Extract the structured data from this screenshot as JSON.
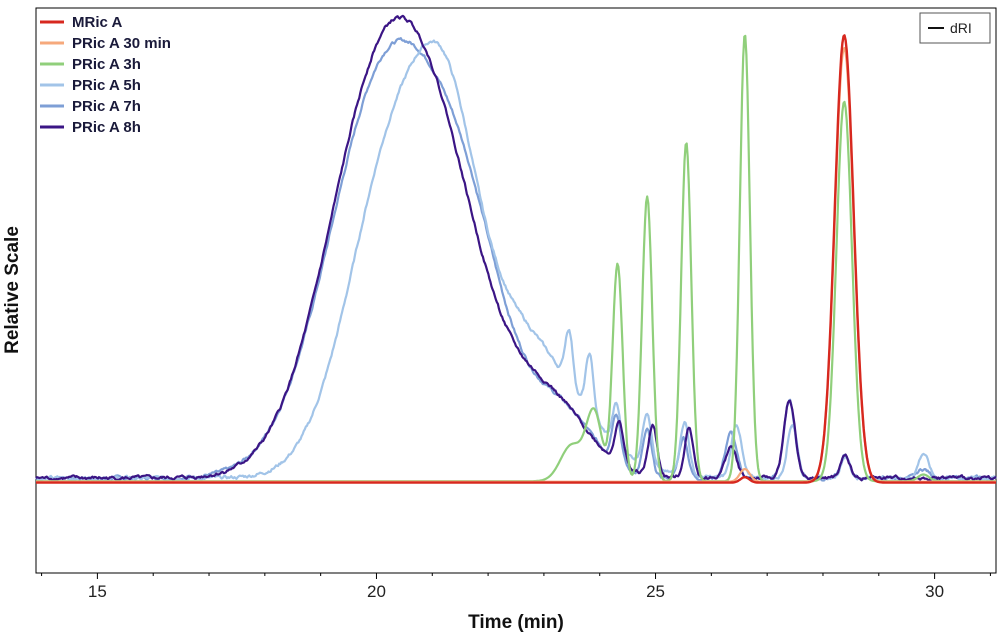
{
  "chart_data": {
    "type": "line",
    "title": "",
    "xlabel": "Time (min)",
    "ylabel": "Relative Scale",
    "xlim": [
      13.9,
      31.1
    ],
    "ylim": [
      -0.2,
      1.05
    ],
    "x_ticks": [
      15,
      20,
      25,
      30
    ],
    "x_tick_labels": [
      "15",
      "20",
      "25",
      "30"
    ],
    "grid": false,
    "legend_position": "top-left",
    "detector_legend": {
      "label": "dRI",
      "position": "top-right"
    },
    "series": [
      {
        "name": "MRic A",
        "color": "#d7281f",
        "baseline": 0,
        "peaks": [
          [
            26.6,
            0.012,
            0.08
          ],
          [
            28.38,
            0.99,
            0.17
          ]
        ]
      },
      {
        "name": "PRic A 30 min",
        "color": "#f6a97c",
        "baseline": 0.002,
        "peaks": [
          [
            26.6,
            0.028,
            0.09
          ],
          [
            28.38,
            0.96,
            0.17
          ]
        ]
      },
      {
        "name": "PRic A 3h",
        "color": "#90cf7b",
        "baseline": 0.003,
        "peaks": [
          [
            23.5,
            0.08,
            0.2
          ],
          [
            23.9,
            0.15,
            0.14
          ],
          [
            24.32,
            0.48,
            0.09
          ],
          [
            24.85,
            0.63,
            0.09
          ],
          [
            25.55,
            0.75,
            0.09
          ],
          [
            26.6,
            0.99,
            0.09
          ],
          [
            28.38,
            0.84,
            0.14
          ],
          [
            29.8,
            0.015,
            0.1
          ]
        ]
      },
      {
        "name": "PRic A 5h",
        "color": "#a2c4e8",
        "baseline": 0.01,
        "peaks": [
          [
            20.4,
            0.73,
            0.85
          ],
          [
            21.3,
            0.3,
            0.5
          ],
          [
            22.4,
            0.33,
            1.1
          ],
          [
            23.45,
            0.12,
            0.07
          ],
          [
            23.82,
            0.13,
            0.07
          ],
          [
            24.3,
            0.09,
            0.07
          ],
          [
            24.85,
            0.12,
            0.08
          ],
          [
            25.52,
            0.12,
            0.08
          ],
          [
            26.45,
            0.12,
            0.09
          ],
          [
            27.45,
            0.12,
            0.09
          ],
          [
            28.4,
            0.05,
            0.08
          ],
          [
            29.8,
            0.055,
            0.09
          ]
        ]
      },
      {
        "name": "PRic A 7h",
        "color": "#7e9fd6",
        "baseline": 0.01,
        "peaks": [
          [
            20.25,
            0.92,
            1.05
          ],
          [
            21.7,
            0.32,
            0.7
          ],
          [
            23.3,
            0.14,
            0.6
          ],
          [
            24.3,
            0.11,
            0.08
          ],
          [
            24.85,
            0.1,
            0.08
          ],
          [
            25.5,
            0.09,
            0.08
          ],
          [
            26.35,
            0.1,
            0.1
          ],
          [
            27.4,
            0.17,
            0.1
          ],
          [
            28.4,
            0.05,
            0.08
          ],
          [
            29.8,
            0.02,
            0.1
          ]
        ]
      },
      {
        "name": "PRic A 8h",
        "color": "#3b1585",
        "baseline": 0.01,
        "peaks": [
          [
            20.15,
            0.9,
            1.0
          ],
          [
            21.4,
            0.32,
            0.8
          ],
          [
            23.1,
            0.16,
            0.7
          ],
          [
            24.35,
            0.09,
            0.08
          ],
          [
            24.95,
            0.11,
            0.08
          ],
          [
            25.6,
            0.11,
            0.08
          ],
          [
            26.35,
            0.07,
            0.1
          ],
          [
            27.4,
            0.17,
            0.1
          ],
          [
            28.4,
            0.05,
            0.08
          ]
        ]
      }
    ]
  }
}
